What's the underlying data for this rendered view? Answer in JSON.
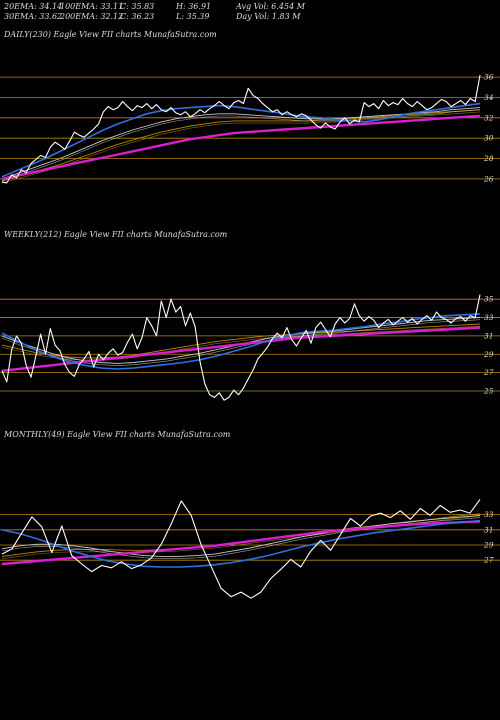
{
  "header": {
    "row1": [
      "20EMA: 34.14",
      "100EMA: 33.11",
      "C: 35.83",
      "H: 36.91",
      "Avg Vol: 6.454  M"
    ],
    "row2": [
      "30EMA: 33.62",
      "200EMA: 32.12",
      "C: 36.23",
      "L: 35.39",
      "Day Vol: 1.83  M"
    ]
  },
  "colors": {
    "background": "#000000",
    "price": "#ffffff",
    "ema_fast": "#2f6fe0",
    "ema_long": "#d81fd0",
    "ema_mid": "#c8c8c8",
    "ema_mid2": "#b8860b",
    "grid": "#b8860b"
  },
  "chart_data": [
    {
      "type": "line",
      "title": "DAILY(230) Eagle  View  FII charts MunafaSutra.com",
      "yticks": [
        36,
        34,
        32,
        30,
        28,
        26
      ],
      "ylim": [
        25.3,
        36.7
      ],
      "series": [
        {
          "role": "price",
          "values": [
            25.7,
            25.6,
            26.4,
            26.1,
            26.9,
            26.6,
            27.5,
            27.9,
            28.3,
            28.1,
            29.1,
            29.6,
            29.3,
            28.9,
            29.7,
            30.6,
            30.3,
            30.1,
            30.5,
            30.9,
            31.4,
            32.6,
            33.1,
            32.8,
            33.0,
            33.6,
            33.1,
            32.7,
            33.2,
            33.0,
            33.4,
            32.9,
            33.3,
            32.8,
            32.6,
            33.0,
            32.5,
            32.3,
            32.6,
            32.1,
            32.4,
            32.8,
            32.5,
            32.9,
            33.2,
            33.6,
            33.2,
            32.9,
            33.5,
            33.7,
            33.4,
            34.9,
            34.2,
            33.9,
            33.4,
            33.0,
            32.6,
            32.8,
            32.3,
            32.6,
            32.3,
            32.1,
            32.4,
            32.2,
            31.8,
            31.3,
            31.0,
            31.5,
            31.1,
            30.9,
            31.6,
            32.0,
            31.4,
            31.8,
            31.6,
            33.5,
            33.1,
            33.4,
            32.9,
            33.7,
            33.2,
            33.5,
            33.3,
            33.9,
            33.4,
            33.1,
            33.6,
            33.2,
            32.8,
            33.0,
            33.4,
            33.8,
            33.6,
            33.1,
            33.4,
            33.7,
            33.3,
            33.9,
            33.6,
            36.2
          ]
        },
        {
          "role": "ema_fast",
          "values": [
            26.2,
            26.8,
            27.4,
            28.0,
            28.7,
            29.4,
            30.1,
            30.8,
            31.4,
            31.9,
            32.4,
            32.7,
            32.9,
            33.0,
            33.1,
            33.2,
            33.1,
            32.9,
            32.7,
            32.5,
            32.3,
            32.1,
            32.0,
            31.8,
            31.7,
            31.6,
            31.8,
            32.1,
            32.4,
            32.6,
            32.8,
            33.0,
            33.2,
            33.4
          ]
        },
        {
          "role": "ema_mid",
          "values": [
            26.0,
            26.5,
            27.0,
            27.5,
            28.0,
            28.6,
            29.2,
            29.8,
            30.3,
            30.8,
            31.2,
            31.6,
            31.9,
            32.1,
            32.3,
            32.4,
            32.4,
            32.3,
            32.2,
            32.1,
            32.0,
            31.9,
            31.9,
            31.9,
            32.0,
            32.1,
            32.2,
            32.3,
            32.4,
            32.5,
            32.6,
            32.8,
            32.9,
            33.0
          ]
        },
        {
          "role": "ema_mid2",
          "values": [
            25.8,
            26.2,
            26.6,
            27.0,
            27.4,
            27.9,
            28.4,
            28.9,
            29.4,
            29.8,
            30.2,
            30.6,
            30.9,
            31.2,
            31.4,
            31.6,
            31.7,
            31.7,
            31.7,
            31.7,
            31.7,
            31.7,
            31.8,
            31.8,
            31.9,
            32.0,
            32.1,
            32.2,
            32.3,
            32.4,
            32.5,
            32.6,
            32.7,
            32.8
          ]
        },
        {
          "role": "ema_long",
          "values": [
            26.0,
            26.3,
            26.6,
            26.9,
            27.2,
            27.5,
            27.8,
            28.1,
            28.4,
            28.7,
            29.0,
            29.3,
            29.6,
            29.9,
            30.1,
            30.3,
            30.5,
            30.6,
            30.7,
            30.8,
            30.9,
            31.0,
            31.1,
            31.2,
            31.3,
            31.4,
            31.5,
            31.6,
            31.7,
            31.8,
            31.9,
            32.0,
            32.1,
            32.2
          ]
        }
      ]
    },
    {
      "type": "line",
      "title": "WEEKLY(212) Eagle  View  FII charts MunafaSutra.com",
      "yticks": [
        35,
        33,
        31,
        29,
        27,
        25
      ],
      "ylim": [
        23.8,
        36.0
      ],
      "series": [
        {
          "role": "price",
          "values": [
            27.2,
            26.0,
            29.5,
            31.0,
            30.2,
            27.8,
            26.5,
            28.8,
            31.2,
            29.0,
            31.8,
            30.0,
            29.4,
            27.9,
            27.0,
            26.6,
            27.9,
            28.5,
            29.3,
            27.6,
            29.0,
            28.4,
            29.1,
            29.6,
            28.9,
            29.2,
            30.3,
            31.2,
            29.6,
            30.8,
            33.0,
            32.1,
            31.0,
            34.8,
            33.0,
            35.0,
            33.6,
            34.2,
            32.1,
            33.5,
            32.0,
            28.2,
            25.8,
            24.6,
            24.3,
            24.8,
            24.0,
            24.3,
            25.1,
            24.6,
            25.3,
            26.3,
            27.3,
            28.5,
            29.1,
            29.8,
            30.7,
            31.3,
            30.8,
            31.9,
            30.6,
            29.9,
            30.8,
            31.6,
            30.2,
            31.9,
            32.5,
            31.7,
            30.9,
            32.3,
            33.0,
            32.4,
            32.9,
            34.5,
            33.2,
            32.6,
            33.1,
            32.7,
            31.9,
            32.4,
            32.8,
            32.2,
            32.6,
            33.0,
            32.5,
            32.9,
            32.3,
            32.8,
            33.2,
            32.7,
            33.6,
            33.0,
            32.8,
            32.4,
            32.9,
            33.1,
            32.6,
            33.2,
            33.0,
            35.5
          ]
        },
        {
          "role": "ema_fast",
          "values": [
            31.3,
            30.4,
            29.5,
            28.8,
            28.2,
            27.8,
            27.5,
            27.4,
            27.5,
            27.7,
            27.9,
            28.1,
            28.4,
            28.8,
            29.3,
            29.8,
            30.4,
            30.9,
            31.3,
            31.5,
            31.6,
            31.8,
            32.0,
            32.3,
            32.5,
            32.8,
            33.0,
            33.2,
            33.3,
            33.4
          ]
        },
        {
          "role": "ema_mid",
          "values": [
            31.0,
            30.3,
            29.7,
            29.1,
            28.6,
            28.3,
            28.1,
            28.0,
            28.1,
            28.3,
            28.5,
            28.8,
            29.1,
            29.5,
            29.9,
            30.3,
            30.7,
            31.0,
            31.2,
            31.4,
            31.5,
            31.7,
            31.9,
            32.1,
            32.3,
            32.5,
            32.7,
            32.8,
            32.9,
            33.0
          ]
        },
        {
          "role": "ema_mid2",
          "values": [
            30.0,
            29.6,
            29.2,
            28.9,
            28.7,
            28.6,
            28.6,
            28.7,
            28.9,
            29.2,
            29.5,
            29.8,
            30.1,
            30.4,
            30.6,
            30.8,
            31.0,
            31.1,
            31.2,
            31.3,
            31.4,
            31.5,
            31.6,
            31.7,
            31.8,
            31.9,
            32.0,
            32.1,
            32.2,
            32.3
          ]
        },
        {
          "role": "ema_long",
          "values": [
            27.2,
            27.4,
            27.6,
            27.8,
            28.0,
            28.2,
            28.4,
            28.6,
            28.8,
            29.0,
            29.2,
            29.4,
            29.6,
            29.8,
            30.0,
            30.2,
            30.4,
            30.6,
            30.8,
            30.9,
            31.0,
            31.1,
            31.2,
            31.3,
            31.4,
            31.5,
            31.6,
            31.7,
            31.8,
            31.9
          ]
        }
      ]
    },
    {
      "type": "line",
      "title": "MONTHLY(49) Eagle  View  FII charts MunafaSutra.com",
      "yticks": [
        33,
        31,
        29,
        27
      ],
      "ylim": [
        21.5,
        36.5
      ],
      "series": [
        {
          "role": "price",
          "values": [
            27.8,
            28.5,
            30.6,
            32.7,
            31.4,
            28.0,
            31.5,
            27.6,
            26.5,
            25.5,
            26.3,
            26.0,
            26.8,
            25.9,
            26.4,
            27.3,
            29.1,
            31.8,
            34.8,
            32.9,
            29.0,
            26.2,
            23.3,
            22.2,
            22.8,
            22.0,
            22.8,
            24.6,
            25.8,
            27.1,
            26.1,
            28.2,
            29.6,
            28.3,
            30.4,
            32.5,
            31.5,
            32.8,
            33.2,
            32.6,
            33.5,
            32.4,
            33.8,
            32.9,
            34.2,
            33.3,
            33.6,
            33.2,
            35.0
          ]
        },
        {
          "role": "ema_fast",
          "values": [
            31.0,
            30.5,
            29.8,
            29.0,
            28.2,
            27.5,
            26.9,
            26.5,
            26.2,
            26.1,
            26.1,
            26.2,
            26.4,
            26.7,
            27.1,
            27.6,
            28.2,
            28.8,
            29.3,
            29.8,
            30.2,
            30.6,
            30.9,
            31.2,
            31.5,
            31.8,
            32.0,
            32.2
          ]
        },
        {
          "role": "ema_mid",
          "values": [
            28.5,
            28.9,
            29.1,
            29.1,
            28.9,
            28.6,
            28.2,
            27.9,
            27.6,
            27.5,
            27.5,
            27.6,
            27.8,
            28.2,
            28.6,
            29.1,
            29.6,
            30.1,
            30.5,
            30.9,
            31.2,
            31.5,
            31.8,
            32.0,
            32.3,
            32.5,
            32.7,
            32.9
          ]
        },
        {
          "role": "ema_mid2",
          "values": [
            27.5,
            27.8,
            28.1,
            28.3,
            28.4,
            28.4,
            28.4,
            28.3,
            28.3,
            28.4,
            28.5,
            28.7,
            28.9,
            29.2,
            29.5,
            29.8,
            30.1,
            30.4,
            30.7,
            31.0,
            31.3,
            31.5,
            31.8,
            32.1,
            32.3,
            32.6,
            32.9,
            33.1
          ]
        },
        {
          "role": "ema_long",
          "values": [
            26.5,
            26.7,
            26.9,
            27.1,
            27.3,
            27.5,
            27.7,
            27.9,
            28.1,
            28.3,
            28.5,
            28.7,
            28.9,
            29.2,
            29.5,
            29.8,
            30.1,
            30.4,
            30.7,
            30.9,
            31.1,
            31.3,
            31.5,
            31.7,
            31.8,
            31.9,
            32.0,
            32.1
          ]
        }
      ]
    }
  ]
}
